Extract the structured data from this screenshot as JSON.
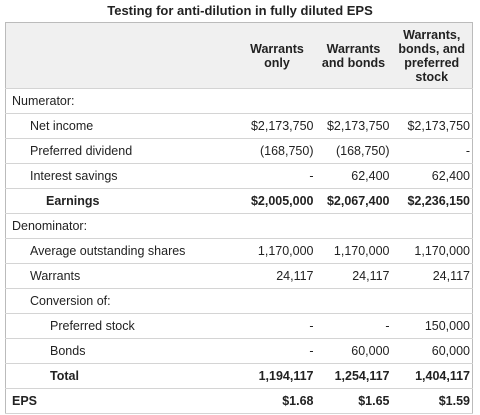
{
  "title": "Testing for anti-dilution in fully diluted EPS",
  "table": {
    "header": [
      "Warrants only",
      "Warrants and bonds",
      "Warrants, bonds, and preferred stock"
    ],
    "rows": [
      [
        "Numerator:"
      ],
      [
        "Net income",
        "$2,173,750",
        "$2,173,750",
        "$2,173,750"
      ],
      [
        "Preferred dividend",
        "(168,750)",
        "(168,750)",
        "-"
      ],
      [
        "Interest savings",
        "-",
        "62,400",
        "62,400"
      ],
      [
        "Earnings",
        "$2,005,000",
        "$2,067,400",
        "$2,236,150"
      ],
      [
        "Denominator:"
      ],
      [
        "Average outstanding shares",
        "1,170,000",
        "1,170,000",
        "1,170,000"
      ],
      [
        "Warrants",
        "24,117",
        "24,117",
        "24,117"
      ],
      [
        "Conversion of:"
      ],
      [
        "Preferred stock",
        "-",
        "-",
        "150,000"
      ],
      [
        "Bonds",
        "-",
        "60,000",
        "60,000"
      ],
      [
        "Total",
        "1,194,117",
        "1,254,117",
        "1,404,117"
      ],
      [
        "EPS",
        "$1.68",
        "$1.65",
        "$1.59"
      ]
    ]
  }
}
